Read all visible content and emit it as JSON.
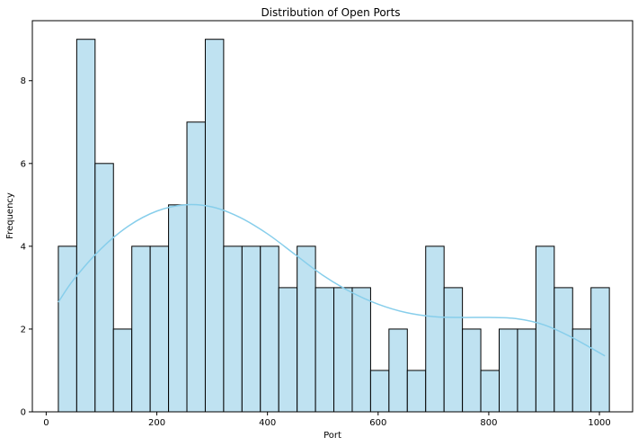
{
  "chart_data": {
    "type": "bar",
    "subtype": "histogram",
    "title": "Distribution of Open Ports",
    "xlabel": "Port",
    "ylabel": "Frequency",
    "xlim": [
      -25,
      1060
    ],
    "ylim": [
      0,
      9.45
    ],
    "x_ticks": [
      0,
      200,
      400,
      600,
      800,
      1000
    ],
    "y_ticks": [
      0,
      2,
      4,
      6,
      8
    ],
    "bin_start": 22,
    "bin_width": 33.2,
    "values": [
      4,
      9,
      6,
      2,
      4,
      4,
      5,
      7,
      9,
      4,
      4,
      4,
      3,
      4,
      3,
      3,
      3,
      1,
      2,
      1,
      4,
      3,
      2,
      1,
      2,
      2,
      4,
      3,
      2,
      3
    ],
    "bar_color": "#bfe2f1",
    "kde_color": "#87ceeb",
    "kde": {
      "x": [
        22,
        50,
        100,
        150,
        200,
        250,
        300,
        350,
        400,
        450,
        500,
        550,
        600,
        650,
        700,
        750,
        800,
        850,
        900,
        950,
        1010
      ],
      "y": [
        2.65,
        3.2,
        3.95,
        4.5,
        4.85,
        5.0,
        4.95,
        4.7,
        4.3,
        3.8,
        3.3,
        2.9,
        2.6,
        2.4,
        2.3,
        2.28,
        2.28,
        2.25,
        2.1,
        1.8,
        1.35
      ]
    },
    "grid": false,
    "legend": "none"
  }
}
